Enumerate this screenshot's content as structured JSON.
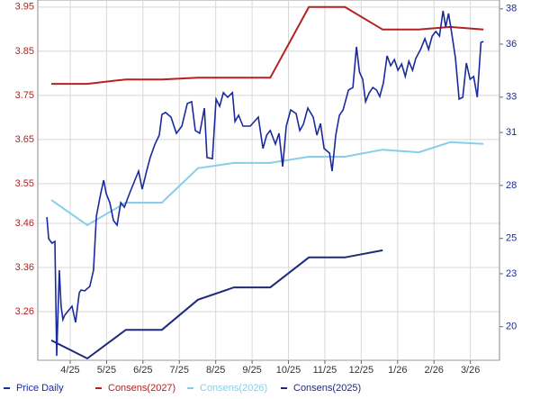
{
  "chart_data": {
    "type": "line",
    "xlim": [
      -0.89,
      11.8
    ],
    "xticks": [
      {
        "value": 0,
        "label": "4/25"
      },
      {
        "value": 1,
        "label": "5/25"
      },
      {
        "value": 2,
        "label": "6/25"
      },
      {
        "value": 3,
        "label": "7/25"
      },
      {
        "value": 4,
        "label": "8/25"
      },
      {
        "value": 5,
        "label": "9/25"
      },
      {
        "value": 6,
        "label": "10/25"
      },
      {
        "value": 7,
        "label": "11/25"
      },
      {
        "value": 8,
        "label": "12/25"
      },
      {
        "value": 9,
        "label": "1/26"
      },
      {
        "value": 10,
        "label": "2/26"
      },
      {
        "value": 11,
        "label": "3/26"
      }
    ],
    "ylim": [
      3.15,
      3.966
    ],
    "yticks": [
      3.95,
      3.85,
      3.75,
      3.65,
      3.55,
      3.46,
      3.36,
      3.26
    ],
    "y_tick_color": "#b22222",
    "y2lim": [
      18.1,
      38.5
    ],
    "y2ticks": [
      38,
      36,
      33,
      31,
      28,
      25,
      23,
      20
    ],
    "y2_tick_color": "#1a2a9c",
    "grid": true,
    "legend": "bottom",
    "series": [
      {
        "name": "Price Daily",
        "color": "#1a2a9c",
        "axis": "y2",
        "x": [
          -0.64,
          -0.59,
          -0.5,
          -0.42,
          -0.37,
          -0.3,
          -0.25,
          -0.2,
          -0.15,
          -0.05,
          0.05,
          0.15,
          0.25,
          0.3,
          0.4,
          0.54,
          0.64,
          0.72,
          0.84,
          0.92,
          0.99,
          1.09,
          1.19,
          1.29,
          1.39,
          1.49,
          1.63,
          1.78,
          1.88,
          1.98,
          2.1,
          2.2,
          2.33,
          2.45,
          2.52,
          2.62,
          2.77,
          2.92,
          3.07,
          3.22,
          3.34,
          3.44,
          3.56,
          3.69,
          3.76,
          3.91,
          4.01,
          4.11,
          4.21,
          4.33,
          4.46,
          4.53,
          4.63,
          4.75,
          4.95,
          5.17,
          5.3,
          5.4,
          5.5,
          5.64,
          5.74,
          5.84,
          5.94,
          6.06,
          6.21,
          6.31,
          6.41,
          6.53,
          6.68,
          6.78,
          6.88,
          6.98,
          7.13,
          7.2,
          7.3,
          7.4,
          7.5,
          7.65,
          7.77,
          7.87,
          7.95,
          8.04,
          8.12,
          8.22,
          8.32,
          8.42,
          8.51,
          8.61,
          8.71,
          8.81,
          8.91,
          9.01,
          9.11,
          9.21,
          9.31,
          9.41,
          9.5,
          9.63,
          9.75,
          9.85,
          9.95,
          10.05,
          10.15,
          10.25,
          10.32,
          10.4,
          10.5,
          10.59,
          10.69,
          10.79,
          10.89,
          10.99,
          11.09,
          11.19,
          11.29,
          11.36
        ],
        "values": [
          26.21,
          24.98,
          24.73,
          24.83,
          18.35,
          23.2,
          21.16,
          20.4,
          20.65,
          20.91,
          21.16,
          20.24,
          21.93,
          22.08,
          22.03,
          22.28,
          23.2,
          26.26,
          27.54,
          28.3,
          27.54,
          27.03,
          26.01,
          25.75,
          27.03,
          26.77,
          27.54,
          28.3,
          28.81,
          27.79,
          28.81,
          29.58,
          30.34,
          30.85,
          32.02,
          32.13,
          31.87,
          30.95,
          31.36,
          32.64,
          32.74,
          31.11,
          30.95,
          32.38,
          29.58,
          29.52,
          32.89,
          32.48,
          33.25,
          32.99,
          33.25,
          31.62,
          31.97,
          31.36,
          31.36,
          31.87,
          30.09,
          30.85,
          31.11,
          30.34,
          30.95,
          29.07,
          31.36,
          32.28,
          32.07,
          31.11,
          31.46,
          32.38,
          31.87,
          30.85,
          31.51,
          30.09,
          29.83,
          28.81,
          30.85,
          31.97,
          32.28,
          33.4,
          33.55,
          35.85,
          34.42,
          34.01,
          32.74,
          33.25,
          33.55,
          33.4,
          33.04,
          33.81,
          35.34,
          34.78,
          35.13,
          34.52,
          34.88,
          34.17,
          35.03,
          34.52,
          35.19,
          35.7,
          36.31,
          35.7,
          36.46,
          36.72,
          36.46,
          37.89,
          36.97,
          37.74,
          36.46,
          35.19,
          32.89,
          32.99,
          34.93,
          34.01,
          34.17,
          32.99,
          36.1,
          36.15
        ]
      },
      {
        "name": "Consens(2027)",
        "color": "#b22222",
        "x": [
          -0.52,
          0.47,
          1.53,
          2.52,
          3.51,
          4.5,
          5.5,
          6.56,
          7.55,
          8.59,
          9.58,
          10.45,
          11.36
        ],
        "values": [
          3.776,
          3.776,
          3.786,
          3.786,
          3.79,
          3.79,
          3.79,
          3.95,
          3.95,
          3.899,
          3.899,
          3.905,
          3.899
        ]
      },
      {
        "name": "Consens(2026)",
        "color": "#87ceeb",
        "x": [
          -0.52,
          0.47,
          1.53,
          2.52,
          3.51,
          4.5,
          5.5,
          6.56,
          7.55,
          8.59,
          9.58,
          10.45,
          11.36
        ],
        "values": [
          3.513,
          3.456,
          3.507,
          3.507,
          3.585,
          3.597,
          3.597,
          3.611,
          3.611,
          3.627,
          3.621,
          3.644,
          3.64
        ]
      },
      {
        "name": "Consens(2025)",
        "color": "#1f2a7a",
        "x": [
          -0.52,
          0.47,
          1.53,
          2.52,
          3.51,
          4.5,
          5.5,
          6.56,
          7.55,
          8.59
        ],
        "values": [
          3.195,
          3.154,
          3.219,
          3.219,
          3.287,
          3.315,
          3.315,
          3.383,
          3.383,
          3.399
        ]
      }
    ]
  }
}
